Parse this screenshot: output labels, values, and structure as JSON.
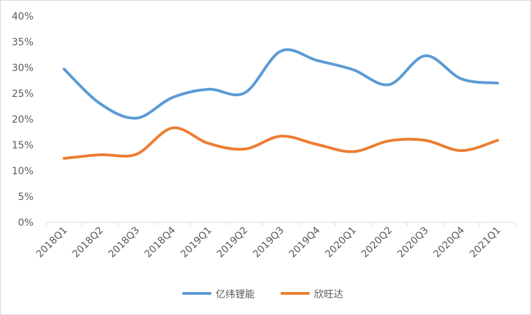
{
  "chart_data": {
    "type": "line",
    "title": "",
    "xlabel": "",
    "ylabel": "",
    "categories": [
      "2018Q1",
      "2018Q2",
      "2018Q3",
      "2018Q4",
      "2019Q1",
      "2019Q2",
      "2019Q3",
      "2019Q4",
      "2020Q1",
      "2020Q2",
      "2020Q3",
      "2020Q4",
      "2021Q1"
    ],
    "ylim": [
      0,
      40
    ],
    "yticks": [
      "0%",
      "5%",
      "10%",
      "15%",
      "20%",
      "25%",
      "30%",
      "35%",
      "40%"
    ],
    "grid": false,
    "legend": "bottom",
    "series": [
      {
        "name": "亿纬锂能",
        "color": "#5B9BD5",
        "values": [
          29.7,
          23.0,
          20.2,
          24.2,
          25.8,
          25.1,
          33.2,
          31.4,
          29.6,
          26.7,
          32.3,
          27.8,
          27.0
        ]
      },
      {
        "name": "欣旺达",
        "color": "#ED7D31",
        "values": [
          12.4,
          13.1,
          13.2,
          18.3,
          15.3,
          14.2,
          16.7,
          15.1,
          13.7,
          15.8,
          15.9,
          13.9,
          15.9
        ]
      }
    ]
  }
}
